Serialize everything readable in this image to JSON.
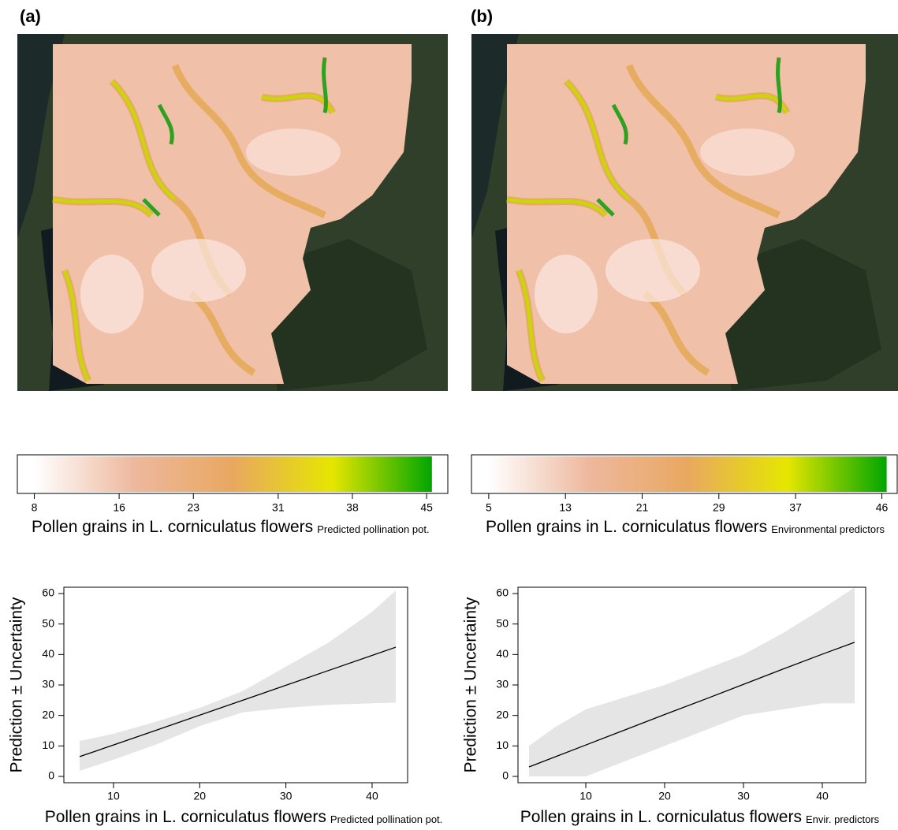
{
  "chart_data": [
    {
      "type": "colorbar",
      "panel": "(a)",
      "xlim": [
        6.4,
        47
      ],
      "xticks": [
        8,
        16,
        23,
        31,
        38,
        45
      ],
      "range": [
        8,
        45.5
      ],
      "colors": [
        "#ffffff",
        "#eeb89e",
        "#e8a860",
        "#e6e600",
        "#00a600"
      ],
      "xlabel": "Pollen grains in L. corniculatus flowers",
      "xlabel_sub": "Predicted pollination pot."
    },
    {
      "type": "colorbar",
      "panel": "(b)",
      "xlim": [
        3.2,
        47.6
      ],
      "xticks": [
        5,
        13,
        21,
        29,
        37,
        46
      ],
      "range": [
        5,
        46.5
      ],
      "colors": [
        "#ffffff",
        "#eeb89e",
        "#e8a860",
        "#e6e600",
        "#00a600"
      ],
      "xlabel": "Pollen grains in L. corniculatus flowers",
      "xlabel_sub": "Environmental predictors"
    },
    {
      "type": "band-line",
      "xlim": [
        4.24,
        44.12
      ],
      "ylim": [
        -2.07,
        62.07
      ],
      "xticks": [
        10,
        20,
        30,
        40
      ],
      "yticks": [
        0,
        10,
        20,
        30,
        40,
        50,
        60
      ],
      "x": [
        6.07,
        10,
        15,
        20,
        25,
        30,
        35,
        40,
        42.75
      ],
      "fit": [
        6.5,
        10.3,
        15.2,
        20.1,
        25.0,
        29.9,
        34.8,
        39.7,
        42.4
      ],
      "lower": [
        1.8,
        5.5,
        10.5,
        16.5,
        21,
        22.5,
        23.5,
        24,
        24.2
      ],
      "upper": [
        11.6,
        14,
        18,
        22.5,
        28,
        36,
        44,
        54,
        61
      ],
      "line_color": "#000000",
      "band_color": "#e5e5e5",
      "ylabel": "Prediction ± Uncertainty",
      "xlabel": "Pollen grains in L. corniculatus flowers",
      "xlabel_sub": "Predicted pollination pot."
    },
    {
      "type": "band-line",
      "xlim": [
        1.4,
        45.5
      ],
      "ylim": [
        -2.07,
        62.07
      ],
      "xticks": [
        10,
        20,
        30,
        40
      ],
      "yticks": [
        0,
        10,
        20,
        30,
        40,
        50,
        60
      ],
      "x": [
        2.8,
        6,
        10,
        15,
        20,
        25,
        30,
        35,
        40,
        44.1
      ],
      "fit": [
        3.1,
        6.3,
        10.3,
        15.3,
        20.3,
        25.2,
        30.2,
        35.2,
        40.1,
        44
      ],
      "lower": [
        0,
        0,
        0,
        5,
        10,
        15,
        20,
        22,
        24,
        24
      ],
      "upper": [
        10,
        16,
        22,
        26,
        30,
        35,
        40,
        47,
        55,
        62
      ],
      "line_color": "#000000",
      "band_color": "#e5e5e5",
      "ylabel": "Prediction ± Uncertainty",
      "xlabel": "Pollen grains in L. corniculatus flowers",
      "xlabel_sub": "Envir. predictors"
    }
  ]
}
